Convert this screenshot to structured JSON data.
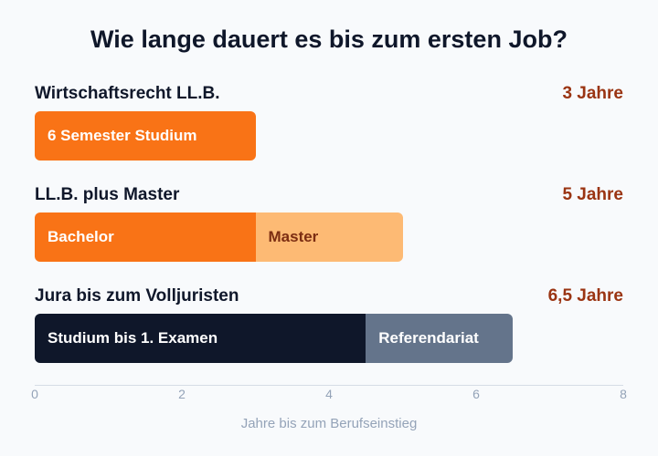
{
  "title": "Wie lange dauert es bis zum ersten Job?",
  "chart_data": {
    "type": "bar",
    "orientation": "horizontal",
    "stacked": true,
    "title": "Wie lange dauert es bis zum ersten Job?",
    "xlabel": "Jahre bis zum Berufseinstieg",
    "xlim": [
      0,
      8
    ],
    "xticks": [
      "0",
      "2",
      "4",
      "6",
      "8"
    ],
    "rows": [
      {
        "label": "Wirtschaftsrecht LL.B.",
        "total_label": "3 Jahre",
        "segments": [
          {
            "label": "6 Semester Studium",
            "value": 3,
            "color": "#f97316",
            "text_color": "#ffffff"
          }
        ]
      },
      {
        "label": "LL.B. plus Master",
        "total_label": "5 Jahre",
        "segments": [
          {
            "label": "Bachelor",
            "value": 3,
            "color": "#f97316",
            "text_color": "#ffffff"
          },
          {
            "label": "Master",
            "value": 2,
            "color": "#fdba74",
            "text_color": "#7c2d12"
          }
        ]
      },
      {
        "label": "Jura bis zum Volljuristen",
        "total_label": "6,5 Jahre",
        "segments": [
          {
            "label": "Studium bis 1. Examen",
            "value": 4.5,
            "color": "#0f172a",
            "text_color": "#ffffff"
          },
          {
            "label": "Referendariat",
            "value": 2,
            "color": "#64748b",
            "text_color": "#ffffff"
          }
        ]
      }
    ]
  }
}
